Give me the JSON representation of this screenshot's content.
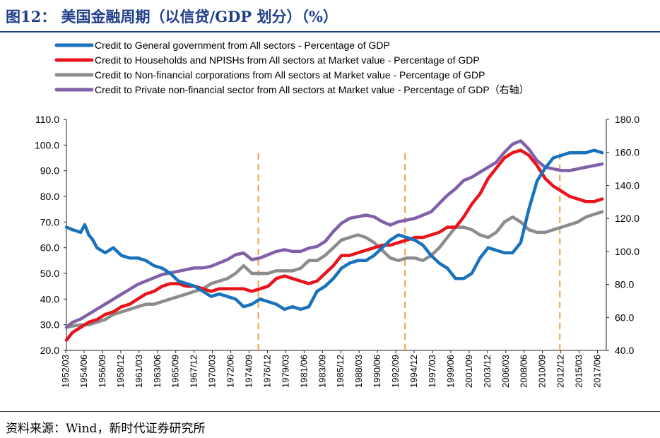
{
  "title": "图12：  美国金融周期（以信贷/GDP 划分）（%）",
  "source": "资料来源：Wind，新时代证券研究所",
  "chart_data": {
    "type": "line",
    "left_axis": {
      "ylim": [
        20,
        110
      ],
      "ticks": [
        "20.0",
        "30.0",
        "40.0",
        "50.0",
        "60.0",
        "70.0",
        "80.0",
        "90.0",
        "100.0",
        "110.0"
      ]
    },
    "right_axis": {
      "ylim": [
        40,
        180
      ],
      "ticks": [
        "40.0",
        "60.0",
        "80.0",
        "100.0",
        "120.0",
        "140.0",
        "160.0",
        "180.0"
      ]
    },
    "x_range": [
      1952.25,
      2018.5
    ],
    "x_ticks": [
      "1952/03",
      "1954/06",
      "1956/09",
      "1958/12",
      "1961/03",
      "1963/06",
      "1965/09",
      "1967/12",
      "1970/03",
      "1972/06",
      "1974/09",
      "1976/12",
      "1979/03",
      "1981/06",
      "1983/09",
      "1985/12",
      "1988/03",
      "1990/06",
      "1992/09",
      "1994/12",
      "1997/03",
      "1999/06",
      "2001/09",
      "2003/12",
      "2006/03",
      "2008/06",
      "2010/09",
      "2012/12",
      "2015/03",
      "2017/06"
    ],
    "vlines": [
      1975.8,
      1993.8,
      2012.8
    ],
    "series": [
      {
        "name": "Credit to General government from All sectors - Percentage of GDP",
        "color": "#1a72bd",
        "axis": "left",
        "x": [
          1952.25,
          1953,
          1954,
          1954.5,
          1955,
          1955.5,
          1956,
          1957,
          1958,
          1959,
          1960,
          1961,
          1962,
          1963,
          1964,
          1965,
          1966,
          1967,
          1968,
          1969,
          1970,
          1971,
          1972,
          1973,
          1974,
          1975,
          1976,
          1977,
          1978,
          1979,
          1980,
          1981,
          1982,
          1983,
          1984,
          1985,
          1986,
          1987,
          1988,
          1989,
          1990,
          1991,
          1992,
          1993,
          1994,
          1995,
          1996,
          1997,
          1998,
          1999,
          2000,
          2001,
          2002,
          2003,
          2004,
          2005,
          2006,
          2007,
          2008,
          2009,
          2010,
          2011,
          2012,
          2013,
          2014,
          2015,
          2016,
          2017,
          2018
        ],
        "y": [
          68,
          67,
          66,
          69,
          65,
          63,
          60,
          58,
          60,
          57,
          56,
          56,
          55,
          53,
          52,
          50,
          47,
          46,
          45,
          43,
          41,
          42,
          41,
          40,
          37,
          38,
          40,
          39,
          38,
          36,
          37,
          36,
          37,
          43,
          45,
          48,
          52,
          54,
          55,
          55,
          57,
          60,
          63,
          65,
          64,
          63,
          61,
          57,
          54,
          52,
          48,
          48,
          50,
          56,
          60,
          59,
          58,
          58,
          62,
          75,
          86,
          91,
          95,
          96,
          97,
          97,
          97,
          98,
          97
        ]
      },
      {
        "name": "Credit to Households and NPISHs from All sectors at Market value - Percentage of GDP",
        "color": "#e8141b",
        "axis": "left",
        "x": [
          1952.25,
          1953,
          1954,
          1955,
          1956,
          1957,
          1958,
          1959,
          1960,
          1961,
          1962,
          1963,
          1964,
          1965,
          1966,
          1967,
          1968,
          1969,
          1970,
          1971,
          1972,
          1973,
          1974,
          1975,
          1976,
          1977,
          1978,
          1979,
          1980,
          1981,
          1982,
          1983,
          1984,
          1985,
          1986,
          1987,
          1988,
          1989,
          1990,
          1991,
          1992,
          1993,
          1994,
          1995,
          1996,
          1997,
          1998,
          1999,
          2000,
          2001,
          2002,
          2003,
          2004,
          2005,
          2006,
          2007,
          2008,
          2009,
          2010,
          2011,
          2012,
          2013,
          2014,
          2015,
          2016,
          2017,
          2018
        ],
        "y": [
          24,
          27,
          29,
          31,
          32,
          34,
          35,
          37,
          38,
          40,
          42,
          43,
          45,
          46,
          46,
          45,
          45,
          44,
          43,
          44,
          44,
          44,
          44,
          43,
          44,
          45,
          48,
          49,
          48,
          47,
          46,
          47,
          50,
          53,
          57,
          57,
          58,
          59,
          60,
          61,
          61,
          62,
          63,
          64,
          64,
          65,
          66,
          68,
          68,
          72,
          77,
          81,
          87,
          91,
          95,
          97,
          98,
          96,
          92,
          87,
          84,
          82,
          80,
          79,
          78,
          78,
          79
        ]
      },
      {
        "name": "Credit to Non-financial corporations from All sectors at Market value - Percentage of GDP",
        "color": "#8c8c8c",
        "axis": "left",
        "x": [
          1952.25,
          1953,
          1954,
          1955,
          1956,
          1957,
          1958,
          1959,
          1960,
          1961,
          1962,
          1963,
          1964,
          1965,
          1966,
          1967,
          1968,
          1969,
          1970,
          1971,
          1972,
          1973,
          1974,
          1975,
          1976,
          1977,
          1978,
          1979,
          1980,
          1981,
          1982,
          1983,
          1984,
          1985,
          1986,
          1987,
          1988,
          1989,
          1990,
          1991,
          1992,
          1993,
          1994,
          1995,
          1996,
          1997,
          1998,
          1999,
          2000,
          2001,
          2002,
          2003,
          2004,
          2005,
          2006,
          2007,
          2008,
          2009,
          2010,
          2011,
          2012,
          2013,
          2014,
          2015,
          2016,
          2017,
          2018
        ],
        "y": [
          29,
          29.5,
          30,
          30,
          31,
          32,
          34,
          35,
          36,
          37,
          38,
          38,
          39,
          40,
          41,
          42,
          43,
          44,
          46,
          47,
          48,
          50,
          53,
          50,
          50,
          50,
          51,
          51,
          51,
          52,
          55,
          55,
          57,
          60,
          63,
          64,
          65,
          64,
          62,
          59,
          56,
          55,
          56,
          56,
          55,
          57,
          60,
          64,
          68,
          68,
          67,
          65,
          64,
          66,
          70,
          72,
          70,
          67,
          66,
          66,
          67,
          68,
          69,
          70,
          72,
          73,
          74
        ]
      },
      {
        "name": "Credit to Private non-financial sector from All sectors at Market value - Percentage of GDP（右轴）",
        "color": "#8060a8",
        "axis": "right",
        "x": [
          1952.25,
          1953,
          1954,
          1955,
          1956,
          1957,
          1958,
          1959,
          1960,
          1961,
          1962,
          1963,
          1964,
          1965,
          1966,
          1967,
          1968,
          1969,
          1970,
          1971,
          1972,
          1973,
          1974,
          1975,
          1976,
          1977,
          1978,
          1979,
          1980,
          1981,
          1982,
          1983,
          1984,
          1985,
          1986,
          1987,
          1988,
          1989,
          1990,
          1991,
          1992,
          1993,
          1994,
          1995,
          1996,
          1997,
          1998,
          1999,
          2000,
          2001,
          2002,
          2003,
          2004,
          2005,
          2006,
          2007,
          2008,
          2009,
          2010,
          2011,
          2012,
          2013,
          2014,
          2015,
          2016,
          2017,
          2018
        ],
        "y": [
          54,
          57,
          59,
          62,
          65,
          68,
          71,
          74,
          77,
          80,
          82,
          84,
          86,
          87,
          88,
          89,
          90,
          90,
          91,
          93,
          95,
          98,
          99,
          95,
          96,
          98,
          100,
          101,
          100,
          100,
          102,
          103,
          106,
          112,
          117,
          120,
          121,
          122,
          121,
          118,
          116,
          118,
          119,
          120,
          122,
          124,
          129,
          134,
          138,
          143,
          145,
          148,
          151,
          154,
          160,
          165,
          167,
          162,
          155,
          151,
          150,
          149,
          149,
          150,
          151,
          152,
          153
        ]
      }
    ]
  }
}
